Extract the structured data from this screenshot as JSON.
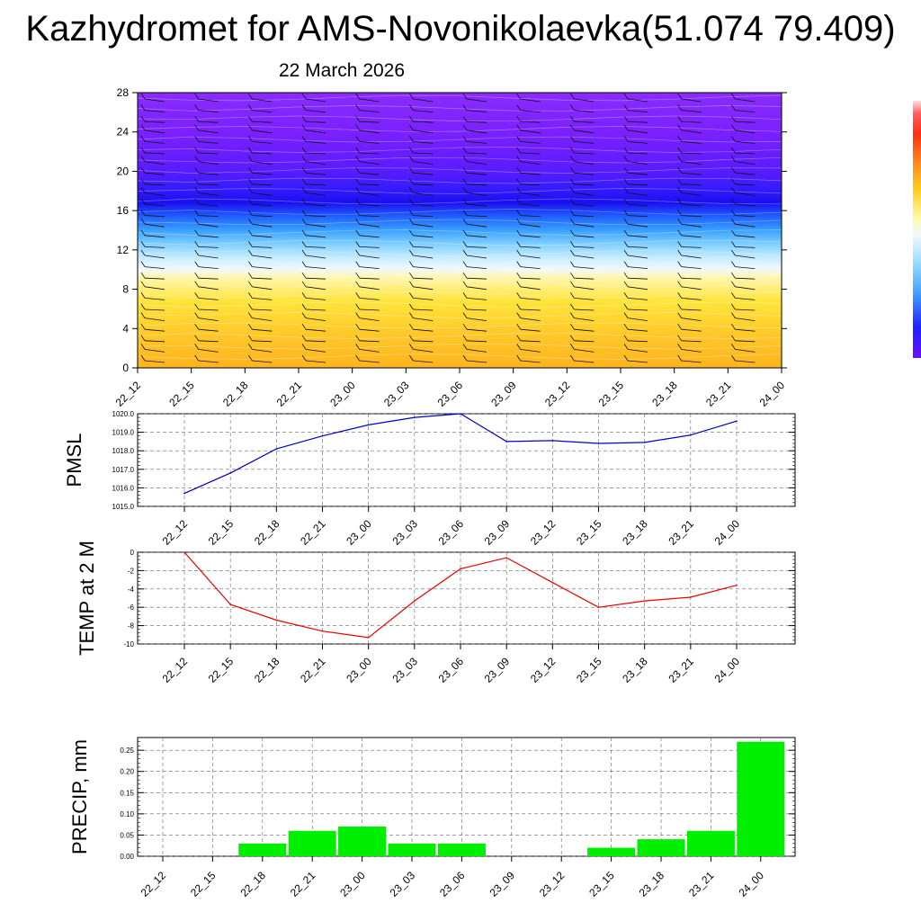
{
  "page": {
    "title": "Kazhydromet for AMS-Novonikolaevka(51.074 79.409)",
    "subtitle": "22 March 2026"
  },
  "colors": {
    "pmsl_line": "#0000cc",
    "temp_line": "#ee0000",
    "precip_bar": "#00ee00",
    "cross_section_top": "#7a1fff",
    "cross_section_mid": "#2020e0",
    "cross_section_bottom": "#ffc020"
  },
  "chart_data": [
    {
      "type": "heatmap",
      "title": "",
      "xlabel": "",
      "ylabel": "",
      "x": [
        "22_12",
        "22_15",
        "22_18",
        "22_21",
        "23_00",
        "23_03",
        "23_06",
        "23_09",
        "23_12",
        "23_15",
        "23_18",
        "23_21",
        "24_00"
      ],
      "ylim": [
        0,
        28
      ],
      "yticks": [
        0,
        4,
        8,
        12,
        16,
        20,
        24,
        28
      ],
      "layers": [
        {
          "from": 0,
          "to": 10.5,
          "color": "yellow-orange"
        },
        {
          "from": 10.5,
          "to": 15,
          "color": "light-blue"
        },
        {
          "from": 15,
          "to": 19,
          "color": "blue"
        },
        {
          "from": 19,
          "to": 28,
          "color": "violet"
        }
      ],
      "overlay": "wind barbs",
      "colorbar": {
        "ticks": []
      }
    },
    {
      "type": "line",
      "ylabel": "PMSL",
      "x": [
        "22_12",
        "22_15",
        "22_18",
        "22_21",
        "23_00",
        "23_03",
        "23_06",
        "23_09",
        "23_12",
        "23_15",
        "23_18",
        "23_21",
        "24_00"
      ],
      "values": [
        1015.7,
        1016.8,
        1018.1,
        1018.8,
        1019.4,
        1019.8,
        1020.0,
        1018.5,
        1018.55,
        1018.4,
        1018.45,
        1018.85,
        1019.6
      ],
      "ylim": [
        1015.0,
        1020.0
      ],
      "yticks": [
        "1015.0",
        "1016.0",
        "1017.0",
        "1018.0",
        "1019.0",
        "1020.0"
      ],
      "grid": true
    },
    {
      "type": "line",
      "ylabel": "TEMP at 2 M",
      "x": [
        "22_12",
        "22_15",
        "22_18",
        "22_21",
        "23_00",
        "23_03",
        "23_06",
        "23_09",
        "23_12",
        "23_15",
        "23_18",
        "23_21",
        "24_00"
      ],
      "values": [
        0,
        -5.7,
        -7.4,
        -8.6,
        -9.3,
        -5.3,
        -1.8,
        -0.6,
        -3.3,
        -6.0,
        -5.3,
        -4.9,
        -3.6
      ],
      "ylim": [
        -10,
        0
      ],
      "yticks": [
        "-10",
        "-8",
        "-6",
        "-4",
        "-2",
        "0"
      ],
      "grid": true
    },
    {
      "type": "bar",
      "ylabel": "PRECIP, mm",
      "categories": [
        "22_12",
        "22_15",
        "22_18",
        "22_21",
        "23_00",
        "23_03",
        "23_06",
        "23_09",
        "23_12",
        "23_15",
        "23_18",
        "23_21",
        "24_00"
      ],
      "values": [
        0,
        0,
        0.03,
        0.06,
        0.07,
        0.03,
        0.03,
        0,
        0,
        0.02,
        0.04,
        0.06,
        0.27
      ],
      "ylim": [
        0,
        0.28
      ],
      "yticks": [
        "0.00",
        "0.05",
        "0.10",
        "0.15",
        "0.20",
        "0.25"
      ],
      "grid": true
    }
  ]
}
